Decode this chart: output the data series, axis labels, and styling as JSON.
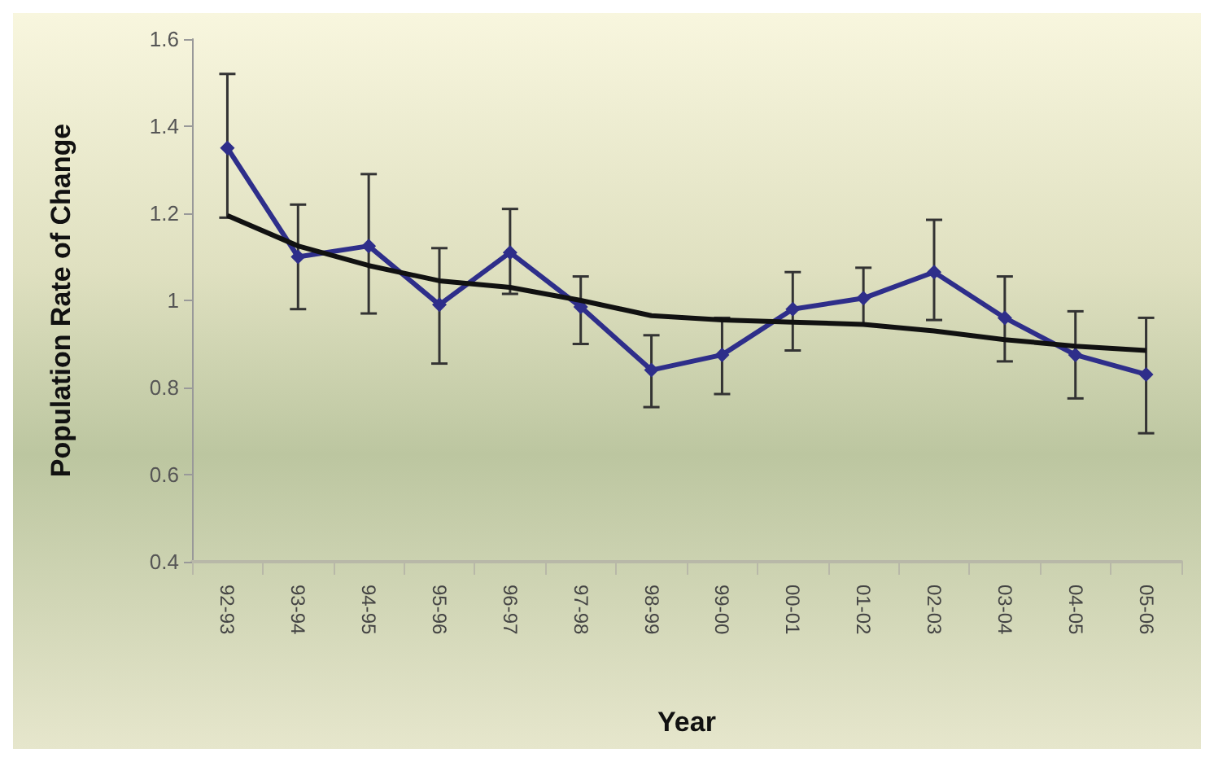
{
  "chart_data": {
    "type": "line",
    "xlabel": "Year",
    "ylabel": "Population Rate of Change",
    "categories": [
      "92-93",
      "93-94",
      "94-95",
      "95-96",
      "96-97",
      "97-98",
      "98-99",
      "99-00",
      "00-01",
      "01-02",
      "02-03",
      "03-04",
      "04-05",
      "05-06"
    ],
    "series": [
      {
        "color": "#2e2e8a",
        "marker": "diamond",
        "values": [
          1.35,
          1.1,
          1.125,
          0.99,
          1.11,
          0.985,
          0.84,
          0.875,
          0.98,
          1.005,
          1.065,
          0.96,
          0.875,
          0.83
        ],
        "errors": [
          [
            1.19,
            1.52
          ],
          [
            0.98,
            1.22
          ],
          [
            0.97,
            1.29
          ],
          [
            0.855,
            1.12
          ],
          [
            1.015,
            1.21
          ],
          [
            0.9,
            1.055
          ],
          [
            0.755,
            0.92
          ],
          [
            0.785,
            0.96
          ],
          [
            0.885,
            1.065
          ],
          [
            0.945,
            1.075
          ],
          [
            0.955,
            1.185
          ],
          [
            0.86,
            1.055
          ],
          [
            0.775,
            0.975
          ],
          [
            0.695,
            0.96
          ]
        ]
      },
      {
        "color": "#111111",
        "marker": "none",
        "x": [
          "92-93",
          "93-94",
          "94-95",
          "95-96",
          "96-97",
          "97-98",
          "98-99",
          "99-00",
          "00-01",
          "01-02",
          "02-03",
          "03-04",
          "04-05",
          "05-06"
        ],
        "values": [
          1.195,
          1.125,
          1.08,
          1.045,
          1.03,
          1.0,
          0.965,
          0.955,
          0.95,
          0.945,
          0.93,
          0.91,
          0.895,
          0.885
        ]
      }
    ],
    "ylim": [
      0.4,
      1.6
    ],
    "yticks": [
      0.4,
      0.6,
      0.8,
      {
        "value": 1,
        "label": "1"
      },
      1.2,
      1.4,
      1.6
    ],
    "grid": false
  }
}
